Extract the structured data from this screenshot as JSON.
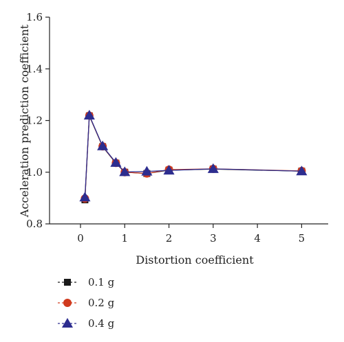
{
  "chart_data": {
    "type": "line",
    "title": "",
    "xlabel": "Distortion coefficient",
    "ylabel": "Acceleration prediction coefficient",
    "xlim": [
      -0.7,
      5.6
    ],
    "ylim": [
      0.8,
      1.6
    ],
    "xticks": [
      0,
      1,
      2,
      3,
      4,
      5
    ],
    "xtick_labels": [
      "0",
      "1",
      "2",
      "3",
      "4",
      "5"
    ],
    "yticks": [
      0.8,
      1.0,
      1.2,
      1.4,
      1.6
    ],
    "ytick_labels": [
      "0.8",
      "1.0",
      "1.2",
      "1.4",
      "1.6"
    ],
    "grid": false,
    "legend_position": "bottom-left",
    "x": [
      0.1,
      0.2,
      0.5,
      0.8,
      1.0,
      1.5,
      2.0,
      3.0,
      5.0
    ],
    "series": [
      {
        "name": "0.1 g",
        "marker": "square",
        "color": "#1a1a1a",
        "values": [
          0.893,
          1.218,
          1.099,
          1.035,
          1.0,
          0.995,
          1.008,
          1.012,
          1.004
        ]
      },
      {
        "name": "0.2 g",
        "marker": "circle",
        "color": "#d03a1e",
        "values": [
          0.898,
          1.219,
          1.1,
          1.036,
          1.0,
          0.995,
          1.01,
          1.013,
          1.005
        ]
      },
      {
        "name": "0.4 g",
        "marker": "triangle",
        "color": "#2d2d8f",
        "values": [
          0.903,
          1.22,
          1.101,
          1.037,
          1.001,
          1.003,
          1.007,
          1.013,
          1.004
        ]
      }
    ]
  }
}
